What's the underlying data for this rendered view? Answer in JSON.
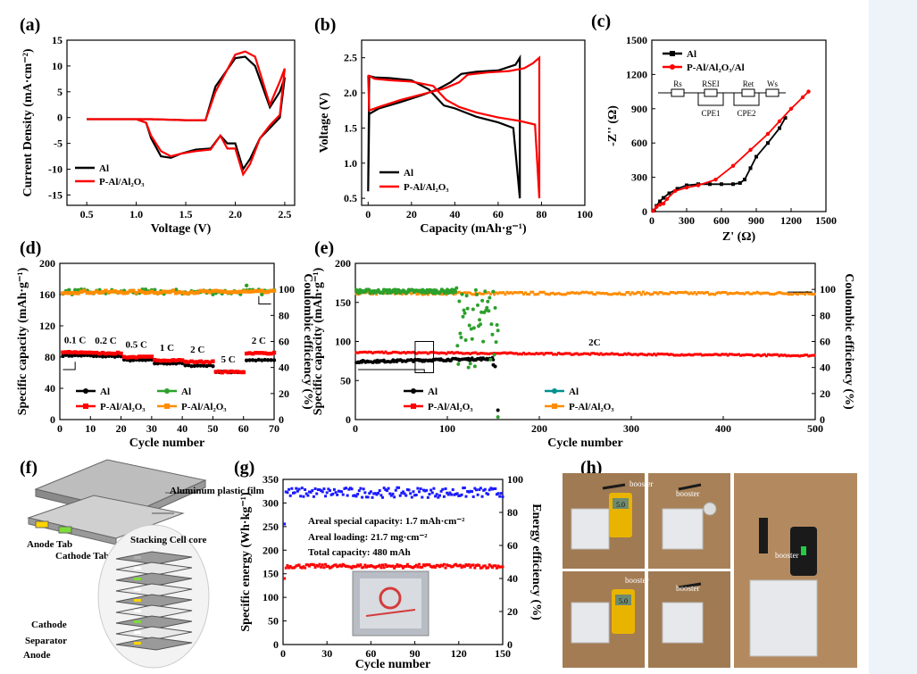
{
  "panel_labels": {
    "a": "(a)",
    "b": "(b)",
    "c": "(c)",
    "d": "(d)",
    "e": "(e)",
    "f": "(f)",
    "g": "(g)",
    "h": "(h)"
  },
  "colors": {
    "al": "#000000",
    "pal": "#ff0000",
    "al_ce_d": "#2ca02c",
    "pal_ce": "#ff8c00",
    "al_ce_e": "#009090",
    "ee": "#1a1aff"
  },
  "chart_data": [
    {
      "id": "a",
      "type": "line",
      "xlabel": "Voltage (V)",
      "ylabel": "Current Density (mA·cm⁻²)",
      "xlim": [
        0.3,
        2.6
      ],
      "ylim": [
        -17,
        15
      ],
      "xticks": [
        "0.5",
        "1.0",
        "1.5",
        "2.0",
        "2.5"
      ],
      "yticks": [
        "-15",
        "-10",
        "-5",
        "0",
        "5",
        "10",
        "15"
      ],
      "legend": [
        "Al",
        "P-Al/Al₂O₃"
      ],
      "legend_position": "bottom-right",
      "series": [
        {
          "name": "Al",
          "x": [
            0.5,
            1.0,
            1.1,
            1.15,
            1.25,
            1.35,
            1.45,
            1.6,
            1.75,
            1.85,
            1.92,
            2.0,
            2.08,
            2.15,
            2.25,
            2.35,
            2.45,
            2.5,
            2.45,
            2.35,
            2.2,
            2.1,
            2.0,
            1.8,
            1.7,
            1.5,
            1.3,
            1.15,
            1.0,
            0.5
          ],
          "y": [
            -0.3,
            -0.3,
            -1,
            -4,
            -7.5,
            -7.8,
            -7,
            -6.2,
            -6,
            -3.5,
            -5,
            -5,
            -10,
            -8,
            -4,
            -2,
            0,
            7.8,
            5,
            2,
            10,
            11.8,
            11.5,
            6,
            -0.5,
            -0.5,
            -0.4,
            -0.3,
            -0.3,
            -0.3
          ]
        },
        {
          "name": "P-Al/Al₂O₃",
          "x": [
            0.5,
            1.0,
            1.1,
            1.15,
            1.25,
            1.35,
            1.45,
            1.6,
            1.75,
            1.85,
            1.92,
            2.0,
            2.08,
            2.15,
            2.25,
            2.35,
            2.45,
            2.5,
            2.45,
            2.35,
            2.2,
            2.1,
            2.0,
            1.8,
            1.7,
            1.5,
            1.3,
            1.15,
            1.0,
            0.5
          ],
          "y": [
            -0.3,
            -0.3,
            -1,
            -3.5,
            -6.5,
            -7.5,
            -7,
            -6.5,
            -6.2,
            -3.5,
            -6,
            -6,
            -11,
            -9,
            -4,
            -1.5,
            0.5,
            9.5,
            7,
            2.5,
            11.8,
            12.8,
            12.2,
            5,
            -0.5,
            -0.5,
            -0.4,
            -0.3,
            -0.3,
            -0.3
          ]
        }
      ]
    },
    {
      "id": "b",
      "type": "line",
      "xlabel": "Capacity (mAh·g⁻¹)",
      "ylabel": "Voltage (V)",
      "xlim": [
        -3,
        100
      ],
      "ylim": [
        0.4,
        2.75
      ],
      "xticks": [
        "0",
        "20",
        "40",
        "60",
        "80",
        "100"
      ],
      "yticks": [
        "0.5",
        "1.0",
        "1.5",
        "2.0",
        "2.5"
      ],
      "legend": [
        "Al",
        "P-Al/Al₂O₃"
      ],
      "legend_position": "bottom-left",
      "series": [
        {
          "name": "Al",
          "x": [
            0,
            0.5,
            5,
            15,
            25,
            32,
            38,
            43,
            50,
            60,
            68,
            70,
            70,
            67,
            60,
            50,
            45,
            40,
            35,
            28,
            20,
            10,
            3,
            0.5,
            0
          ],
          "y": [
            0.6,
            1.7,
            1.78,
            1.87,
            1.97,
            2.05,
            2.15,
            2.27,
            2.3,
            2.32,
            2.4,
            2.5,
            0.5,
            1.5,
            1.58,
            1.66,
            1.72,
            1.78,
            1.82,
            2.05,
            2.18,
            2.21,
            2.22,
            2.24,
            0.6
          ]
        },
        {
          "name": "P-Al/Al₂O₃",
          "x": [
            0,
            0.5,
            5,
            15,
            25,
            35,
            42,
            46,
            55,
            65,
            72,
            76,
            79,
            79,
            77,
            70,
            60,
            50,
            42,
            36,
            30,
            20,
            10,
            3,
            0
          ],
          "y": [
            2.25,
            1.75,
            1.8,
            1.9,
            1.98,
            2.06,
            2.15,
            2.26,
            2.29,
            2.31,
            2.35,
            2.42,
            2.5,
            0.5,
            1.55,
            1.6,
            1.65,
            1.72,
            1.8,
            1.9,
            2.1,
            2.16,
            2.18,
            2.2,
            2.25
          ]
        }
      ]
    },
    {
      "id": "c",
      "type": "line",
      "xlabel": "Z' (Ω)",
      "ylabel": "-Z'' (Ω)",
      "xlim": [
        0,
        1500
      ],
      "ylim": [
        0,
        1500
      ],
      "xticks": [
        "0",
        "300",
        "600",
        "900",
        "1200",
        "1500"
      ],
      "yticks": [
        "0",
        "300",
        "600",
        "900",
        "1200",
        "1500"
      ],
      "legend": [
        "Al",
        "P-Al/Al₂O₃/Al"
      ],
      "legend_position": "top-left",
      "circuit": [
        "Rs",
        "RSEI",
        "Ret",
        "Ws",
        "CPE1",
        "CPE2"
      ],
      "series": [
        {
          "name": "Al",
          "x": [
            20,
            40,
            70,
            100,
            150,
            220,
            300,
            400,
            500,
            600,
            700,
            760,
            800,
            850,
            900,
            1000,
            1100,
            1150
          ],
          "y": [
            10,
            50,
            90,
            120,
            160,
            200,
            230,
            240,
            240,
            240,
            240,
            250,
            280,
            380,
            480,
            600,
            730,
            820
          ]
        },
        {
          "name": "P-Al/Al₂O₃/Al",
          "x": [
            10,
            40,
            70,
            100,
            130,
            200,
            300,
            400,
            550,
            700,
            850,
            1000,
            1100,
            1200,
            1300,
            1350
          ],
          "y": [
            5,
            40,
            60,
            70,
            110,
            180,
            210,
            230,
            280,
            400,
            540,
            680,
            790,
            900,
            1000,
            1050
          ]
        }
      ]
    },
    {
      "id": "d",
      "type": "scatter",
      "xlabel": "Cycle number",
      "ylabel": "Specific capacity (mAh·g⁻¹)",
      "ylabel2": "Coulombic efficiency (%)",
      "xlim": [
        0,
        70
      ],
      "ylim": [
        0,
        200
      ],
      "ylim2": [
        0,
        120
      ],
      "xticks": [
        "0",
        "10",
        "20",
        "30",
        "40",
        "50",
        "60",
        "70"
      ],
      "yticks": [
        "0",
        "20",
        "40",
        "60",
        "80",
        "100",
        "120",
        "140",
        "160",
        "180",
        "200"
      ],
      "yticks2": [
        "0",
        "20",
        "40",
        "60",
        "80",
        "100"
      ],
      "rates": [
        "0.1 C",
        "0.2 C",
        "0.5 C",
        "1 C",
        "2 C",
        "5 C",
        "2 C"
      ],
      "legend": [
        "Al",
        "P-Al/Al₂O₃",
        "Al",
        "P-Al/Al₂O₃"
      ],
      "legend_position": "bottom-center",
      "series": [
        {
          "name": "Al",
          "axis": "left",
          "segments": [
            [
              1,
              10,
              82
            ],
            [
              11,
              20,
              81
            ],
            [
              21,
              30,
              76
            ],
            [
              31,
              40,
              72
            ],
            [
              41,
              50,
              69
            ],
            [
              51,
              60,
              61
            ],
            [
              61,
              70,
              76
            ]
          ]
        },
        {
          "name": "P-Al/Al₂O₃",
          "axis": "left",
          "segments": [
            [
              1,
              10,
              86
            ],
            [
              11,
              20,
              85
            ],
            [
              21,
              30,
              80
            ],
            [
              31,
              40,
              76
            ],
            [
              41,
              50,
              74
            ],
            [
              51,
              60,
              61
            ],
            [
              61,
              70,
              85
            ]
          ]
        },
        {
          "name": "Al",
          "axis": "right",
          "value_range": [
            96,
            100
          ],
          "outliers": [
            [
              61,
              103
            ]
          ]
        },
        {
          "name": "P-Al/Al₂O₃",
          "axis": "right",
          "value_range": [
            97,
            99
          ]
        }
      ]
    },
    {
      "id": "e",
      "type": "scatter",
      "xlabel": "Cycle number",
      "ylabel": "Specific capacity (mAh·g⁻¹)",
      "ylabel2": "Coulombic efficiency (%)",
      "xlim": [
        0,
        500
      ],
      "ylim": [
        0,
        200
      ],
      "ylim2": [
        0,
        120
      ],
      "xticks": [
        "0",
        "100",
        "200",
        "300",
        "400",
        "500"
      ],
      "yticks": [
        "0",
        "50",
        "100",
        "150",
        "200"
      ],
      "yticks2": [
        "0",
        "20",
        "40",
        "60",
        "80",
        "100"
      ],
      "rate": "2C",
      "legend": [
        "Al",
        "P-Al/Al₂O₃",
        "Al",
        "P-Al/Al₂O₃"
      ],
      "legend_position": "bottom",
      "series": [
        {
          "name": "Al",
          "axis": "left",
          "x_range": [
            1,
            155
          ],
          "values": [
            72,
            80
          ],
          "end_points": [
            [
              150,
              70
            ],
            [
              152,
              68
            ],
            [
              155,
              12
            ]
          ]
        },
        {
          "name": "P-Al/Al₂O₃",
          "axis": "left",
          "x_range": [
            1,
            500
          ],
          "values": [
            80,
            88
          ]
        },
        {
          "name": "Al",
          "axis": "right",
          "x_range": [
            1,
            155
          ],
          "values": [
            97,
            100
          ],
          "scatter_range": [
            110,
            155
          ]
        },
        {
          "name": "P-Al/Al₂O₃",
          "axis": "right",
          "x_range": [
            1,
            500
          ],
          "values": [
            96,
            98
          ]
        }
      ]
    },
    {
      "id": "g",
      "type": "scatter",
      "xlabel": "Cycle number",
      "ylabel": "Specific energy (Wh·kg⁻¹)",
      "ylabel2": "Energy efficiency (%)",
      "xlim": [
        0,
        150
      ],
      "ylim": [
        0,
        350
      ],
      "ylim2": [
        0,
        100
      ],
      "xticks": [
        "0",
        "30",
        "60",
        "90",
        "120",
        "150"
      ],
      "yticks": [
        "0",
        "50",
        "100",
        "150",
        "200",
        "250",
        "300",
        "350"
      ],
      "yticks2": [
        "0",
        "20",
        "40",
        "60",
        "80",
        "100"
      ],
      "series": [
        {
          "name": "Specific energy",
          "axis": "left",
          "x_range": [
            1,
            150
          ],
          "values": [
            162,
            170
          ],
          "first": [
            1,
            140
          ]
        },
        {
          "name": "Energy efficiency",
          "axis": "right",
          "x_range": [
            1,
            150
          ],
          "values": [
            89,
            95
          ],
          "first": [
            1,
            73
          ]
        }
      ]
    }
  ],
  "panel_f": {
    "labels": [
      "Aluminum plastic film",
      "Anode Tab",
      "Cathode Tab",
      "Stacking Cell core",
      "Cathode",
      "Separator",
      "Anode"
    ]
  },
  "panel_g_text": [
    "Areal special capacity: 1.7 mAh·cm⁻²",
    "Areal loading: 21.7 mg·cm⁻²",
    "Total capacity: 480 mAh"
  ],
  "panel_h": {
    "labels": [
      "booster",
      "booster",
      "booster",
      "booster",
      "booster"
    ],
    "meter1": "5.0",
    "meter2": "5.0"
  }
}
